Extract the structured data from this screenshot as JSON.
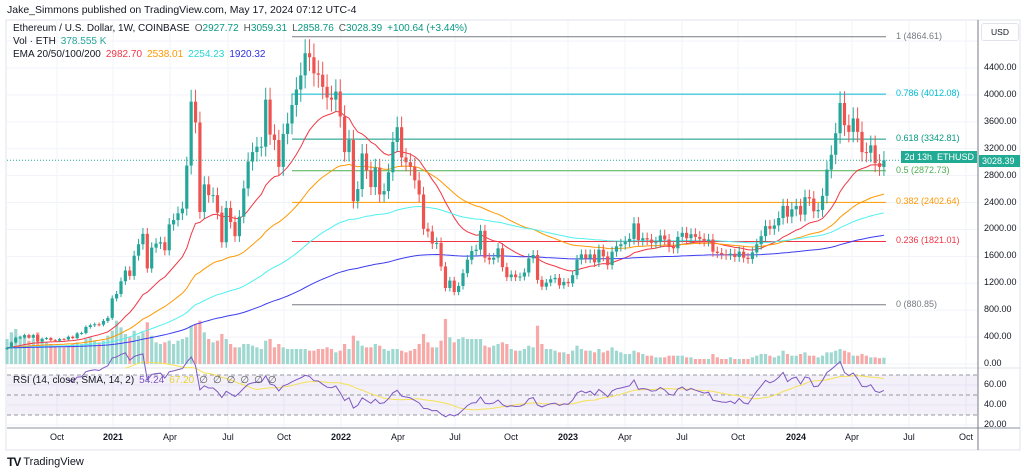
{
  "header": {
    "published": "Jake_Simmons published on TradingView.com, May 17, 2024 07:12 UTC-4",
    "symbol": "Ethereum / U.S. Dollar, 1W, COINBASE",
    "o_label": "O",
    "o": "2927.72",
    "h_label": "H",
    "h": "3059.31",
    "l_label": "L",
    "l": "2858.76",
    "c_label": "C",
    "c": "3028.39",
    "change": "+100.64 (+3.44%)",
    "vol_label": "Vol · ETH",
    "vol": "378.555 K",
    "ema_label": "EMA 20/50/100/200",
    "ema20": "2982.70",
    "ema50": "2538.01",
    "ema100": "2254.23",
    "ema200": "1920.32",
    "rsi_label": "RSI (14, close, SMA, 14, 2)",
    "rsi": "54.24",
    "rsi_sma": "67.20",
    "rsi_na": [
      "∅",
      "∅",
      "∅",
      "∅",
      "∅",
      "∅"
    ]
  },
  "price_axis": {
    "currency": "USD",
    "ticks": [
      "4400.00",
      "4000.00",
      "3600.00",
      "3200.00",
      "2800.00",
      "2400.00",
      "2000.00",
      "1600.00",
      "1200.00",
      "800.00",
      "400.00",
      "0.00"
    ],
    "rsi_ticks": [
      "60.00",
      "40.00",
      "20.00"
    ]
  },
  "price_tag": {
    "symbol": "ETHUSD",
    "price": "3028.39",
    "countdown": "2d 13h"
  },
  "time_axis": [
    "Oct",
    "2021",
    "Apr",
    "Jul",
    "Oct",
    "2022",
    "Apr",
    "Jul",
    "Oct",
    "2023",
    "Apr",
    "Jul",
    "Oct",
    "2024",
    "Apr",
    "Jul",
    "Oct"
  ],
  "brand": {
    "name": "TradingView"
  },
  "colors": {
    "up": "#26a69a",
    "down": "#ef5350",
    "vol_up": "#9fd8d1",
    "vol_down": "#f7a9a7",
    "ema20": "#f23645",
    "ema50": "#ff9800",
    "ema100": "#4ff0ee",
    "ema200": "#3c3cf0",
    "rsi": "#7e57c2",
    "rsi_sma": "#f5e156"
  },
  "chart_data": {
    "type": "candlestick",
    "interval": "1W",
    "start_week": "2020-07-13",
    "ylim": [
      0,
      4600
    ],
    "rsi_ylim": [
      20,
      80
    ],
    "grid": true,
    "close": [
      240,
      320,
      390,
      395,
      430,
      390,
      430,
      335,
      375,
      385,
      355,
      345,
      370,
      365,
      405,
      385,
      455,
      460,
      550,
      575,
      590,
      585,
      640,
      685,
      975,
      1040,
      1230,
      1390,
      1310,
      1610,
      1780,
      1935,
      1420,
      1730,
      1790,
      1810,
      1690,
      2075,
      2140,
      2240,
      2310,
      2950,
      3900,
      3590,
      2260,
      2670,
      2510,
      2510,
      2250,
      1810,
      2320,
      2110,
      1900,
      2190,
      2610,
      3010,
      3150,
      3230,
      3230,
      3930,
      3410,
      3330,
      2930,
      3420,
      3575,
      3850,
      4080,
      4290,
      4620,
      4560,
      4320,
      4300,
      4120,
      3960,
      3930,
      4050,
      3680,
      3150,
      3330,
      2420,
      2600,
      3130,
      2880,
      2630,
      2920,
      2520,
      2570,
      2850,
      3300,
      3520,
      3070,
      3000,
      2930,
      2730,
      2520,
      2010,
      1970,
      1790,
      1800,
      1450,
      1130,
      1240,
      1070,
      1160,
      1350,
      1550,
      1680,
      1700,
      1980,
      1580,
      1550,
      1580,
      1720,
      1440,
      1290,
      1330,
      1290,
      1300,
      1360,
      1570,
      1620,
      1250,
      1150,
      1210,
      1260,
      1280,
      1170,
      1220,
      1200,
      1320,
      1550,
      1630,
      1570,
      1630,
      1510,
      1700,
      1600,
      1470,
      1670,
      1750,
      1780,
      1820,
      1860,
      2090,
      1840,
      1870,
      1850,
      1800,
      1810,
      1910,
      1850,
      1740,
      1720,
      1890,
      1950,
      1870,
      1930,
      1890,
      1860,
      1830,
      1850,
      1670,
      1650,
      1630,
      1620,
      1640,
      1590,
      1670,
      1580,
      1560,
      1660,
      1780,
      1900,
      2050,
      2010,
      2060,
      2170,
      2350,
      2190,
      2300,
      2350,
      2220,
      2480,
      2460,
      2270,
      2290,
      2500,
      2890,
      3110,
      3430,
      3880,
      3550,
      3450,
      3650,
      3450,
      3150,
      3140,
      3250,
      2985,
      2928,
      3028.39
    ],
    "volume_k": [
      1500,
      1900,
      2100,
      1700,
      1600,
      1400,
      1500,
      1900,
      1500,
      1300,
      1200,
      1100,
      1000,
      1000,
      1100,
      1200,
      1300,
      1200,
      1500,
      1600,
      1400,
      1300,
      1400,
      1700,
      2000,
      2600,
      2200,
      1800,
      1600,
      2000,
      1700,
      1900,
      2500,
      1700,
      1300,
      1200,
      1300,
      1400,
      1200,
      1400,
      1500,
      1600,
      2300,
      2400,
      2600,
      1900,
      1500,
      1300,
      1400,
      1800,
      1500,
      1200,
      1000,
      1000,
      1200,
      1200,
      1100,
      1000,
      900,
      1400,
      1500,
      1000,
      1200,
      1000,
      900,
      900,
      900,
      900,
      900,
      800,
      800,
      900,
      900,
      1000,
      900,
      700,
      800,
      1200,
      900,
      1700,
      1400,
      1100,
      1000,
      1000,
      1200,
      1100,
      900,
      800,
      900,
      900,
      800,
      700,
      800,
      900,
      1200,
      1800,
      1300,
      1000,
      1000,
      1400,
      2700,
      1600,
      1300,
      1500,
      1600,
      1500,
      1500,
      1500,
      1500,
      1100,
      1000,
      1100,
      1200,
      1300,
      1200,
      900,
      800,
      800,
      900,
      1100,
      1000,
      2300,
      1200,
      900,
      900,
      800,
      700,
      700,
      600,
      800,
      1100,
      900,
      800,
      800,
      700,
      900,
      700,
      800,
      1000,
      800,
      700,
      600,
      600,
      800,
      700,
      600,
      500,
      500,
      400,
      400,
      400,
      500,
      500,
      500,
      500,
      400,
      400,
      300,
      300,
      300,
      300,
      600,
      400,
      300,
      300,
      400,
      300,
      300,
      300,
      300,
      400,
      500,
      600,
      600,
      500,
      400,
      500,
      800,
      600,
      500,
      500,
      600,
      700,
      500,
      500,
      400,
      500,
      700,
      700,
      800,
      900,
      800,
      700,
      500,
      500,
      600,
      500,
      400,
      400,
      350,
      378.555
    ],
    "fibonacci": [
      {
        "level": "1",
        "price": 4864.61,
        "label": "1 (4864.61)",
        "color": "#787b86"
      },
      {
        "level": "0.786",
        "price": 4012.08,
        "label": "0.786 (4012.08)",
        "color": "#00bcd4"
      },
      {
        "level": "0.618",
        "price": 3342.81,
        "label": "0.618 (3342.81)",
        "color": "#089981"
      },
      {
        "level": "0.5",
        "price": 2872.73,
        "label": "0.5 (2872.73)",
        "color": "#4caf50"
      },
      {
        "level": "0.382",
        "price": 2402.64,
        "label": "0.382 (2402.64)",
        "color": "#ff9800"
      },
      {
        "level": "0.236",
        "price": 1821.01,
        "label": "0.236 (1821.01)",
        "color": "#f23645"
      },
      {
        "level": "0",
        "price": 880.85,
        "label": "0 (880.85)",
        "color": "#787b86"
      }
    ]
  }
}
